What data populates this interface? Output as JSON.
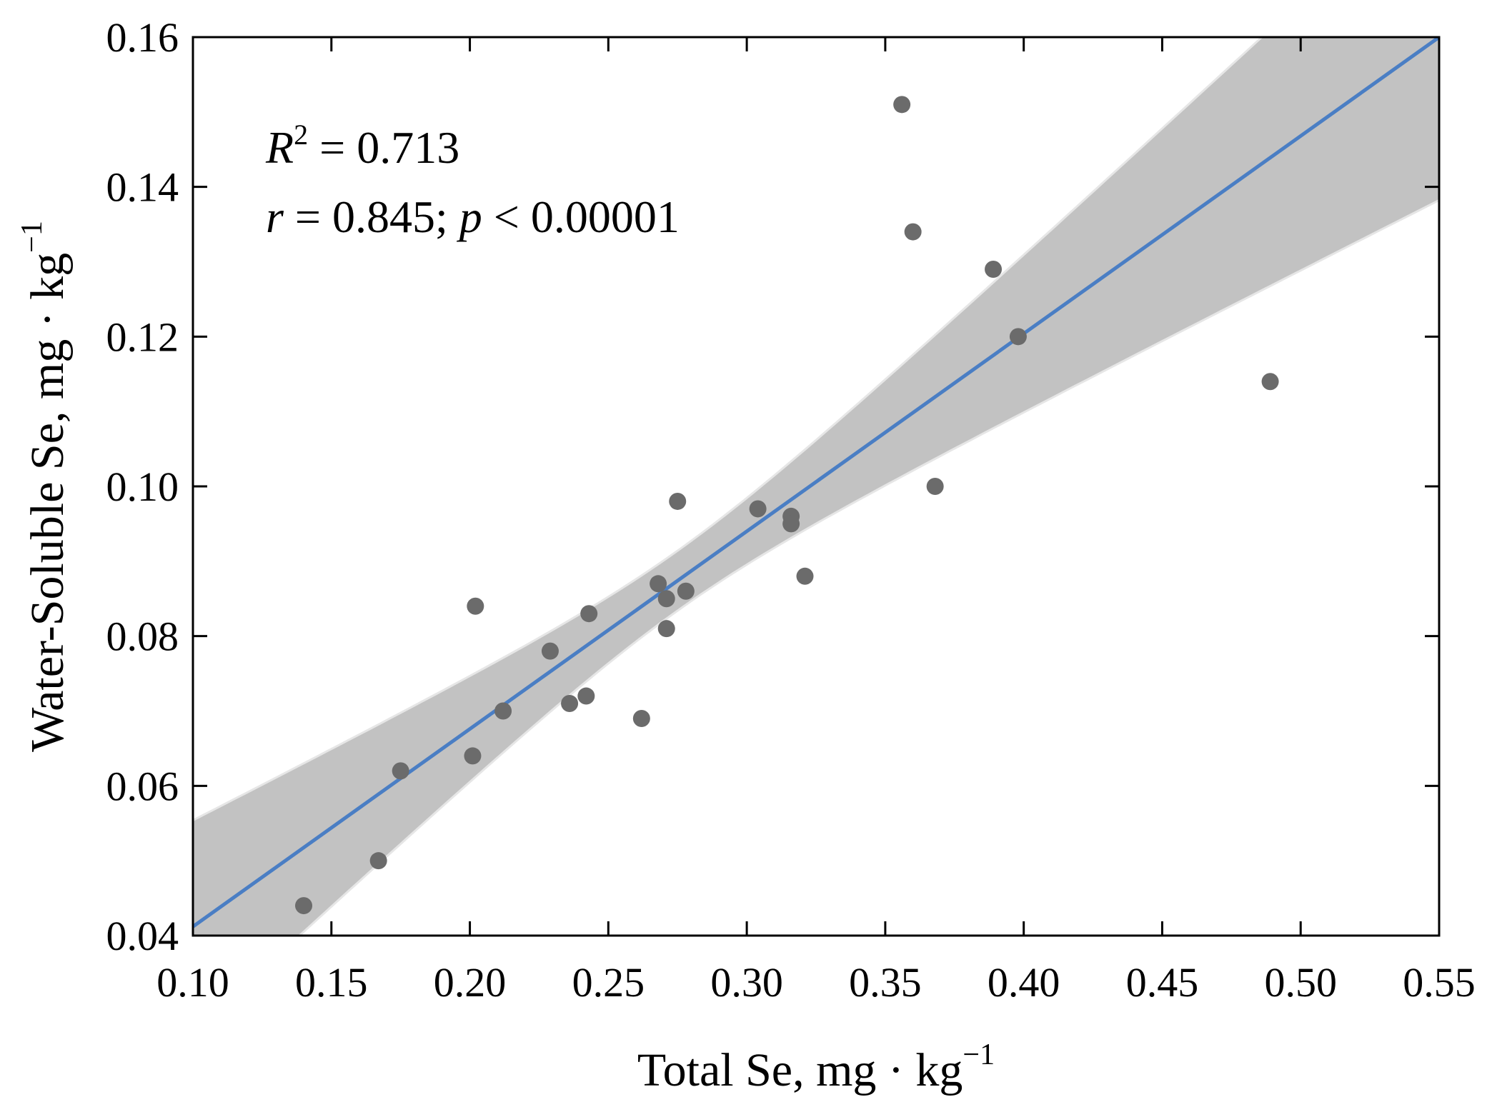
{
  "chart_data": {
    "type": "scatter",
    "title": "",
    "xlabel": "Total Se, mg · kg",
    "xlabel_sup": "−1",
    "ylabel": "Water-Soluble Se, mg · kg",
    "ylabel_sup": "−1",
    "xlim": [
      0.1,
      0.55
    ],
    "ylim": [
      0.04,
      0.16
    ],
    "xticks": [
      0.1,
      0.15,
      0.2,
      0.25,
      0.3,
      0.35,
      0.4,
      0.45,
      0.5,
      0.55
    ],
    "yticks": [
      0.04,
      0.06,
      0.08,
      0.1,
      0.12,
      0.14,
      0.16
    ],
    "xtick_labels": [
      "0.10",
      "0.15",
      "0.20",
      "0.25",
      "0.30",
      "0.35",
      "0.40",
      "0.45",
      "0.50",
      "0.55"
    ],
    "ytick_labels": [
      "0.04",
      "0.06",
      "0.08",
      "0.10",
      "0.12",
      "0.14",
      "0.16"
    ],
    "grid": false,
    "points": [
      {
        "x": 0.14,
        "y": 0.044
      },
      {
        "x": 0.167,
        "y": 0.05
      },
      {
        "x": 0.175,
        "y": 0.062
      },
      {
        "x": 0.201,
        "y": 0.064
      },
      {
        "x": 0.202,
        "y": 0.084
      },
      {
        "x": 0.212,
        "y": 0.07
      },
      {
        "x": 0.229,
        "y": 0.078
      },
      {
        "x": 0.236,
        "y": 0.071
      },
      {
        "x": 0.242,
        "y": 0.072
      },
      {
        "x": 0.243,
        "y": 0.083
      },
      {
        "x": 0.262,
        "y": 0.069
      },
      {
        "x": 0.268,
        "y": 0.087
      },
      {
        "x": 0.271,
        "y": 0.085
      },
      {
        "x": 0.271,
        "y": 0.081
      },
      {
        "x": 0.275,
        "y": 0.098
      },
      {
        "x": 0.278,
        "y": 0.086
      },
      {
        "x": 0.304,
        "y": 0.097
      },
      {
        "x": 0.316,
        "y": 0.096
      },
      {
        "x": 0.316,
        "y": 0.095
      },
      {
        "x": 0.321,
        "y": 0.088
      },
      {
        "x": 0.356,
        "y": 0.151
      },
      {
        "x": 0.36,
        "y": 0.134
      },
      {
        "x": 0.368,
        "y": 0.1
      },
      {
        "x": 0.389,
        "y": 0.129
      },
      {
        "x": 0.398,
        "y": 0.12
      },
      {
        "x": 0.489,
        "y": 0.114
      }
    ],
    "regression": {
      "slope": 0.264,
      "intercept": 0.0148,
      "x_mean": 0.275,
      "ci_half_width_at_mean": 0.004,
      "ci_half_width_at_min": 0.0142,
      "line_color": "#4a7ec4",
      "band_color": "#c2c2c2"
    },
    "point_color": "#6b6b6b",
    "annotations": {
      "r2_symbol": "R",
      "r2_sup": "2",
      "r2_value": " = 0.713",
      "r_symbol": "r",
      "r_value": " = 0.845; ",
      "p_symbol": "p",
      "p_value": " < 0.00001"
    }
  }
}
